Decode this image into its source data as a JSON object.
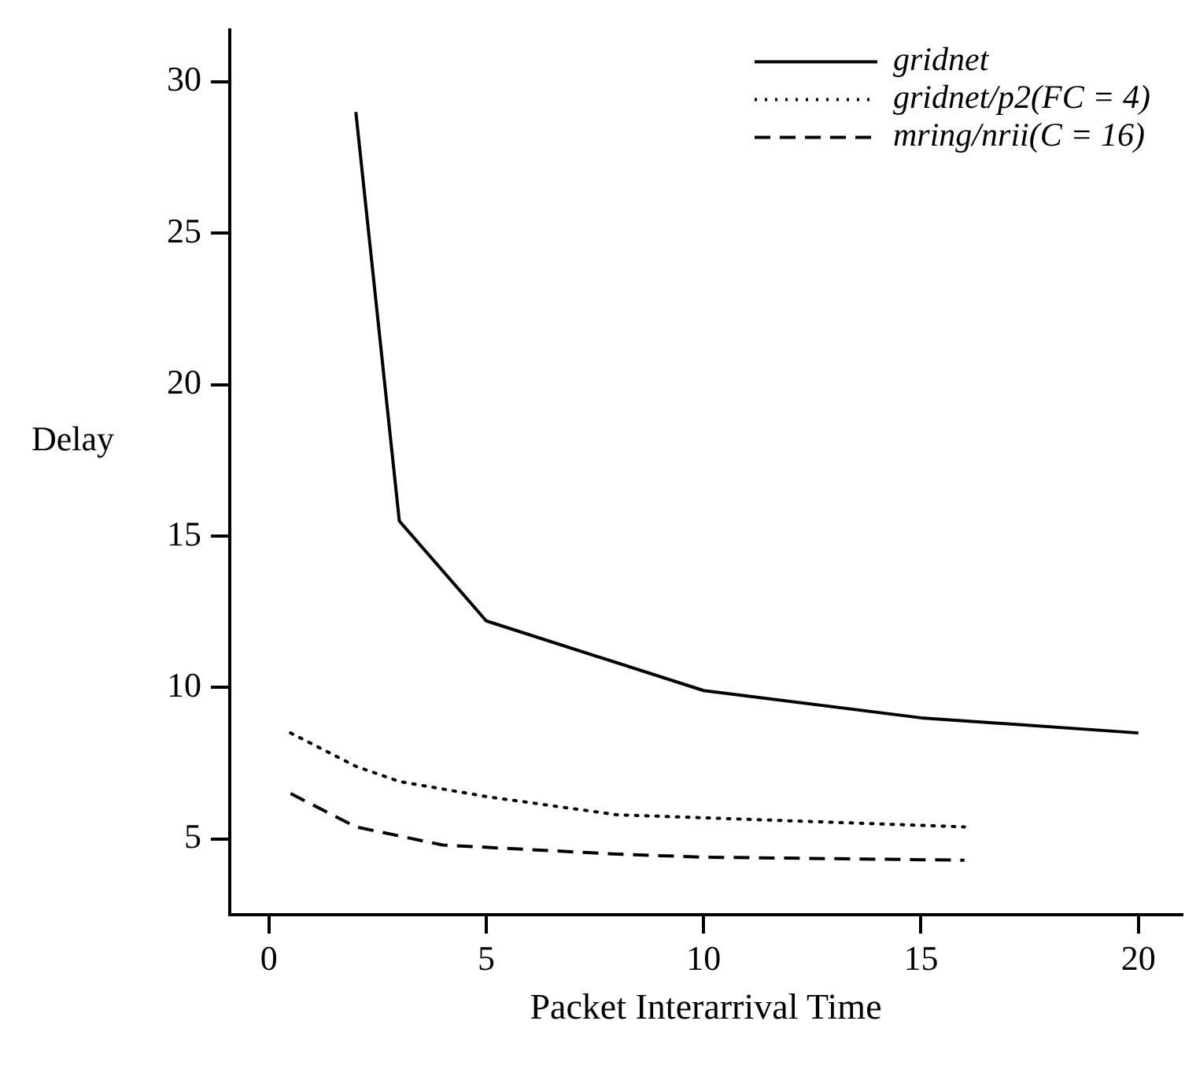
{
  "chart_data": {
    "type": "line",
    "xlabel": "Packet Interarrival Time",
    "ylabel": "Delay",
    "xlim": [
      -0.9,
      21
    ],
    "ylim": [
      2.5,
      31.7
    ],
    "xticks": [
      0,
      5,
      10,
      15,
      20
    ],
    "yticks": [
      5,
      10,
      15,
      20,
      25,
      30
    ],
    "grid": false,
    "legend": "top right",
    "marker": "none",
    "series": [
      {
        "name": "gridnet",
        "color": "#000000",
        "line_style": "solid",
        "x": [
          2,
          3,
          5,
          10,
          15,
          20
        ],
        "values": [
          29,
          15.5,
          12.2,
          9.9,
          9.0,
          8.5
        ]
      },
      {
        "name": "gridnet/p2(FC = 4)",
        "color": "#000000",
        "line_style": "dotted",
        "x": [
          0.5,
          2,
          3,
          5,
          8,
          10,
          16
        ],
        "values": [
          8.5,
          7.4,
          6.9,
          6.4,
          5.8,
          5.7,
          5.4
        ]
      },
      {
        "name": "mring/nrii(C = 16)",
        "color": "#000000",
        "line_style": "dashed",
        "x": [
          0.5,
          2,
          4,
          8,
          10,
          16
        ],
        "values": [
          6.5,
          5.4,
          4.8,
          4.5,
          4.4,
          4.3
        ]
      }
    ]
  }
}
